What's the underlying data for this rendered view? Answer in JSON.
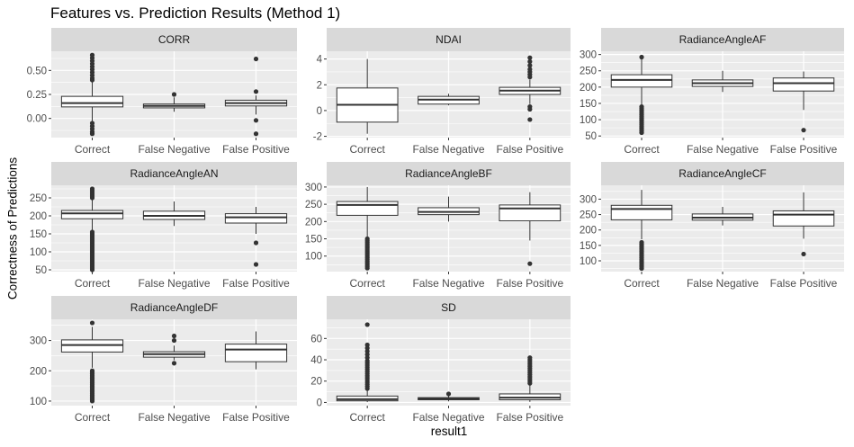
{
  "title": "Features vs. Prediction Results (Method 1)",
  "ylabel": "Correctness of Predictions",
  "xlabel": "result1",
  "colors": {
    "panel_bg": "#ebebeb",
    "strip_bg": "#d9d9d9",
    "grid": "#ffffff",
    "ink": "#333333",
    "tick_text": "#4d4d4d"
  },
  "chart_data": {
    "type": "boxplot-facets",
    "title": "Features vs. Prediction Results (Method 1)",
    "xlabel": "result1",
    "ylabel": "Correctness of Predictions",
    "categories": [
      "Correct",
      "False Negative",
      "False Positive"
    ],
    "facets": [
      {
        "name": "CORR",
        "ylim": [
          -0.2,
          0.7
        ],
        "yticks": [
          0.0,
          0.25,
          0.5
        ],
        "ytick_labels": [
          "0.00",
          "0.25",
          "0.50"
        ],
        "boxes": [
          {
            "category": "Correct",
            "lower": -0.03,
            "q1": 0.12,
            "median": 0.16,
            "q3": 0.23,
            "upper": 0.38,
            "outliers_low": [
              -0.05,
              -0.08,
              -0.11,
              -0.14,
              -0.16
            ],
            "outliers_high": [
              0.4,
              0.42,
              0.45,
              0.48,
              0.51,
              0.54,
              0.57,
              0.6,
              0.63,
              0.66
            ]
          },
          {
            "category": "False Negative",
            "lower": 0.07,
            "q1": 0.11,
            "median": 0.13,
            "q3": 0.15,
            "upper": 0.22,
            "outliers_low": [],
            "outliers_high": [
              0.25
            ]
          },
          {
            "category": "False Positive",
            "lower": 0.04,
            "q1": 0.13,
            "median": 0.16,
            "q3": 0.19,
            "upper": 0.24,
            "outliers_low": [
              -0.02,
              -0.16
            ],
            "outliers_high": [
              0.28,
              0.62
            ]
          }
        ]
      },
      {
        "name": "NDAI",
        "ylim": [
          -2.1,
          4.6
        ],
        "yticks": [
          -2,
          0,
          2,
          4
        ],
        "ytick_labels": [
          "-2",
          "0",
          "2",
          "4"
        ],
        "boxes": [
          {
            "category": "Correct",
            "lower": -1.8,
            "q1": -0.9,
            "median": 0.45,
            "q3": 1.75,
            "upper": 4.0,
            "outliers_low": [],
            "outliers_high": []
          },
          {
            "category": "False Negative",
            "lower": 0.4,
            "q1": 0.5,
            "median": 0.85,
            "q3": 1.1,
            "upper": 1.3,
            "outliers_low": [],
            "outliers_high": []
          },
          {
            "category": "False Positive",
            "lower": 0.5,
            "q1": 1.25,
            "median": 1.55,
            "q3": 1.8,
            "upper": 2.4,
            "outliers_low": [
              0.3,
              0.1,
              -0.7
            ],
            "outliers_high": [
              2.6,
              2.8,
              3.0,
              3.2,
              3.5,
              3.8,
              4.1
            ]
          }
        ]
      },
      {
        "name": "RadianceAngleAF",
        "ylim": [
          45,
          310
        ],
        "yticks": [
          50,
          100,
          150,
          200,
          250,
          300
        ],
        "ytick_labels": [
          "50",
          "100",
          "150",
          "200",
          "250",
          "300"
        ],
        "boxes": [
          {
            "category": "Correct",
            "lower": 145,
            "q1": 200,
            "median": 222,
            "q3": 238,
            "upper": 285,
            "outliers_low": [
              60,
              65,
              70,
              75,
              80,
              85,
              90,
              95,
              100,
              105,
              110,
              115,
              120,
              125,
              130,
              135,
              140
            ],
            "outliers_high": [
              292
            ]
          },
          {
            "category": "False Negative",
            "lower": 185,
            "q1": 202,
            "median": 212,
            "q3": 222,
            "upper": 250,
            "outliers_low": [],
            "outliers_high": []
          },
          {
            "category": "False Positive",
            "lower": 130,
            "q1": 188,
            "median": 212,
            "q3": 228,
            "upper": 248,
            "outliers_low": [
              68
            ],
            "outliers_high": []
          }
        ]
      },
      {
        "name": "RadianceAngleAN",
        "ylim": [
          45,
          285
        ],
        "yticks": [
          50,
          100,
          150,
          200,
          250
        ],
        "ytick_labels": [
          "50",
          "100",
          "150",
          "200",
          "250"
        ],
        "boxes": [
          {
            "category": "Correct",
            "lower": 160,
            "q1": 192,
            "median": 207,
            "q3": 215,
            "upper": 245,
            "outliers_low": [
              50,
              55,
              60,
              65,
              70,
              75,
              80,
              85,
              90,
              95,
              100,
              105,
              110,
              115,
              120,
              125,
              130,
              135,
              140,
              145,
              150,
              155
            ],
            "outliers_high": [
              250,
              255,
              260,
              265,
              270,
              275
            ]
          },
          {
            "category": "False Negative",
            "lower": 172,
            "q1": 190,
            "median": 200,
            "q3": 213,
            "upper": 240,
            "outliers_low": [],
            "outliers_high": []
          },
          {
            "category": "False Positive",
            "lower": 150,
            "q1": 180,
            "median": 196,
            "q3": 206,
            "upper": 225,
            "outliers_low": [
              125,
              65
            ],
            "outliers_high": []
          }
        ]
      },
      {
        "name": "RadianceAngleBF",
        "ylim": [
          55,
          305
        ],
        "yticks": [
          100,
          150,
          200,
          250,
          300
        ],
        "ytick_labels": [
          "100",
          "150",
          "200",
          "250",
          "300"
        ],
        "boxes": [
          {
            "category": "Correct",
            "lower": 155,
            "q1": 218,
            "median": 248,
            "q3": 258,
            "upper": 300,
            "outliers_low": [
              65,
              70,
              75,
              80,
              85,
              90,
              95,
              100,
              105,
              110,
              115,
              120,
              125,
              130,
              135,
              140,
              145,
              150
            ],
            "outliers_high": []
          },
          {
            "category": "False Negative",
            "lower": 200,
            "q1": 220,
            "median": 228,
            "q3": 240,
            "upper": 272,
            "outliers_low": [],
            "outliers_high": []
          },
          {
            "category": "False Positive",
            "lower": 145,
            "q1": 202,
            "median": 238,
            "q3": 248,
            "upper": 285,
            "outliers_low": [
              78
            ],
            "outliers_high": []
          }
        ]
      },
      {
        "name": "RadianceAngleCF",
        "ylim": [
          65,
          345
        ],
        "yticks": [
          100,
          150,
          200,
          250,
          300
        ],
        "ytick_labels": [
          "100",
          "150",
          "200",
          "250",
          "300"
        ],
        "boxes": [
          {
            "category": "Correct",
            "lower": 170,
            "q1": 233,
            "median": 268,
            "q3": 280,
            "upper": 330,
            "outliers_low": [
              75,
              80,
              85,
              90,
              95,
              100,
              105,
              110,
              115,
              120,
              125,
              130,
              135,
              140,
              145,
              150,
              155,
              160
            ],
            "outliers_high": []
          },
          {
            "category": "False Negative",
            "lower": 215,
            "q1": 232,
            "median": 240,
            "q3": 252,
            "upper": 275,
            "outliers_low": [],
            "outliers_high": []
          },
          {
            "category": "False Positive",
            "lower": 172,
            "q1": 213,
            "median": 250,
            "q3": 262,
            "upper": 322,
            "outliers_low": [
              122
            ],
            "outliers_high": []
          }
        ]
      },
      {
        "name": "RadianceAngleDF",
        "ylim": [
          85,
          370
        ],
        "yticks": [
          100,
          200,
          300
        ],
        "ytick_labels": [
          "100",
          "200",
          "300"
        ],
        "boxes": [
          {
            "category": "Correct",
            "lower": 210,
            "q1": 262,
            "median": 285,
            "q3": 302,
            "upper": 345,
            "outliers_low": [
              100,
              105,
              110,
              115,
              120,
              125,
              130,
              135,
              140,
              145,
              150,
              155,
              160,
              165,
              170,
              175,
              180,
              185,
              190,
              195,
              200
            ],
            "outliers_high": [
              358
            ]
          },
          {
            "category": "False Negative",
            "lower": 235,
            "q1": 245,
            "median": 255,
            "q3": 263,
            "upper": 283,
            "outliers_low": [
              225
            ],
            "outliers_high": [
              300,
              315
            ]
          },
          {
            "category": "False Positive",
            "lower": 205,
            "q1": 230,
            "median": 270,
            "q3": 288,
            "upper": 330,
            "outliers_low": [],
            "outliers_high": []
          }
        ]
      },
      {
        "name": "SD",
        "ylim": [
          -3,
          78
        ],
        "yticks": [
          0,
          20,
          40,
          60
        ],
        "ytick_labels": [
          "0",
          "20",
          "40",
          "60"
        ],
        "boxes": [
          {
            "category": "Correct",
            "lower": 0.3,
            "q1": 1.5,
            "median": 3.0,
            "q3": 6.0,
            "upper": 12.0,
            "outliers_low": [],
            "outliers_high": [
              13,
              15,
              17,
              19,
              21,
              23,
              25,
              27,
              29,
              31,
              33,
              35,
              37,
              39,
              42,
              45,
              48,
              51,
              54,
              73
            ]
          },
          {
            "category": "False Negative",
            "lower": 1.0,
            "q1": 2.5,
            "median": 3.5,
            "q3": 4.5,
            "upper": 6.5,
            "outliers_low": [],
            "outliers_high": [
              8
            ]
          },
          {
            "category": "False Positive",
            "lower": 0.5,
            "q1": 2.5,
            "median": 4.5,
            "q3": 8.0,
            "upper": 16.0,
            "outliers_low": [],
            "outliers_high": [
              18,
              20,
              22,
              24,
              26,
              28,
              30,
              32,
              34,
              36,
              38,
              40,
              42
            ]
          }
        ]
      }
    ]
  }
}
